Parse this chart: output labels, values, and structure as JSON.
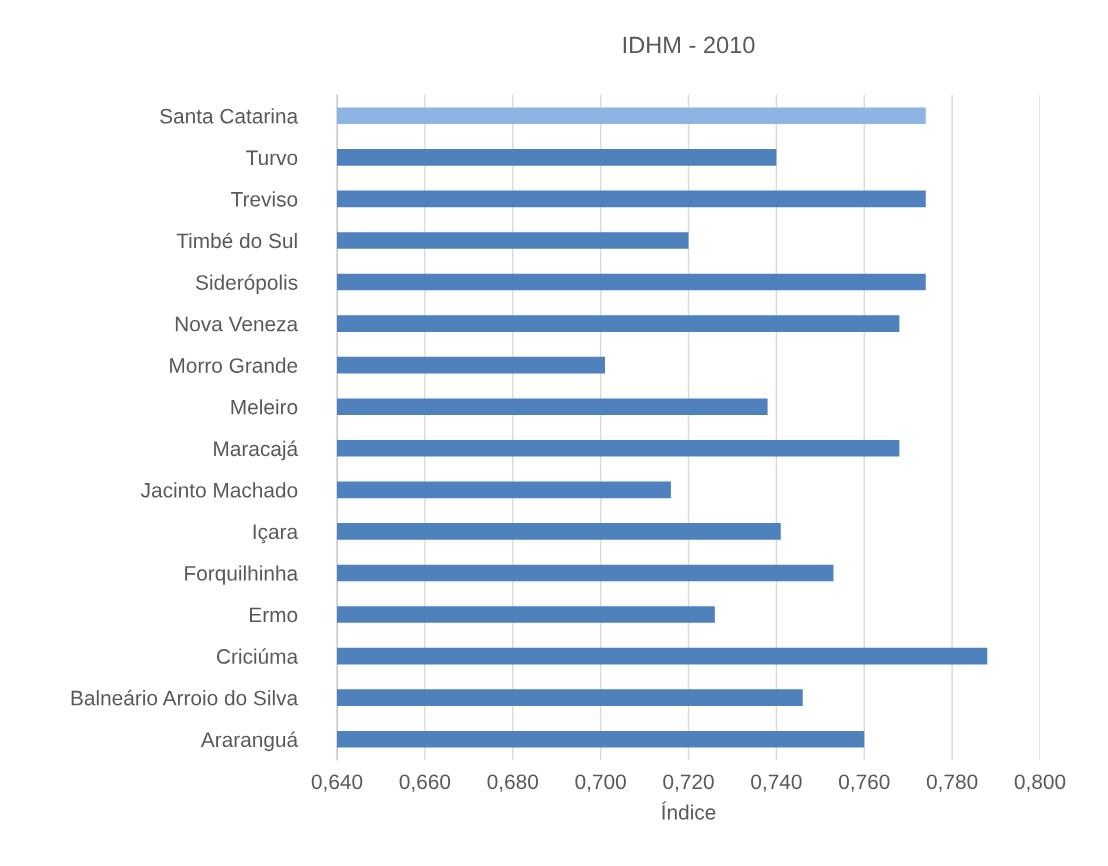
{
  "chart_data": {
    "type": "bar",
    "orientation": "horizontal",
    "title": "IDHM - 2010",
    "xlabel": "Índice",
    "categories": [
      "Santa Catarina",
      "Turvo",
      "Treviso",
      "Timbé do Sul",
      "Siderópolis",
      "Nova Veneza",
      "Morro Grande",
      "Meleiro",
      "Maracajá",
      "Jacinto Machado",
      "Içara",
      "Forquilhinha",
      "Ermo",
      "Criciúma",
      "Balneário Arroio do Silva",
      "Araranguá"
    ],
    "values": [
      0.774,
      0.74,
      0.774,
      0.72,
      0.774,
      0.768,
      0.701,
      0.738,
      0.768,
      0.716,
      0.741,
      0.753,
      0.726,
      0.788,
      0.746,
      0.76
    ],
    "colors": [
      "#8eb4e3",
      "#4f81bd",
      "#4f81bd",
      "#4f81bd",
      "#4f81bd",
      "#4f81bd",
      "#4f81bd",
      "#4f81bd",
      "#4f81bd",
      "#4f81bd",
      "#4f81bd",
      "#4f81bd",
      "#4f81bd",
      "#4f81bd",
      "#4f81bd",
      "#4f81bd"
    ],
    "xlim": [
      0.64,
      0.8
    ],
    "xticks": [
      {
        "value": 0.64,
        "label": "0,640"
      },
      {
        "value": 0.66,
        "label": "0,660"
      },
      {
        "value": 0.68,
        "label": "0,680"
      },
      {
        "value": 0.7,
        "label": "0,700"
      },
      {
        "value": 0.72,
        "label": "0,720"
      },
      {
        "value": 0.74,
        "label": "0,740"
      },
      {
        "value": 0.76,
        "label": "0,760"
      },
      {
        "value": 0.78,
        "label": "0,780"
      },
      {
        "value": 0.8,
        "label": "0,800"
      }
    ],
    "grid": "x"
  }
}
